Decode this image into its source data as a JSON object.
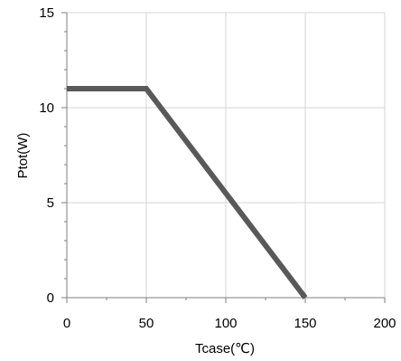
{
  "chart_data": {
    "type": "line",
    "title": "",
    "xlabel": "Tcase(℃)",
    "ylabel": "Ptot(W)",
    "xlim": [
      0,
      200
    ],
    "ylim": [
      0,
      15
    ],
    "x_ticks": [
      0,
      50,
      100,
      150,
      200
    ],
    "y_ticks": [
      0,
      5,
      10,
      15
    ],
    "grid": true,
    "series": [
      {
        "color": "#595959",
        "x": [
          0,
          50,
          150
        ],
        "y": [
          11,
          11,
          0
        ]
      }
    ]
  }
}
